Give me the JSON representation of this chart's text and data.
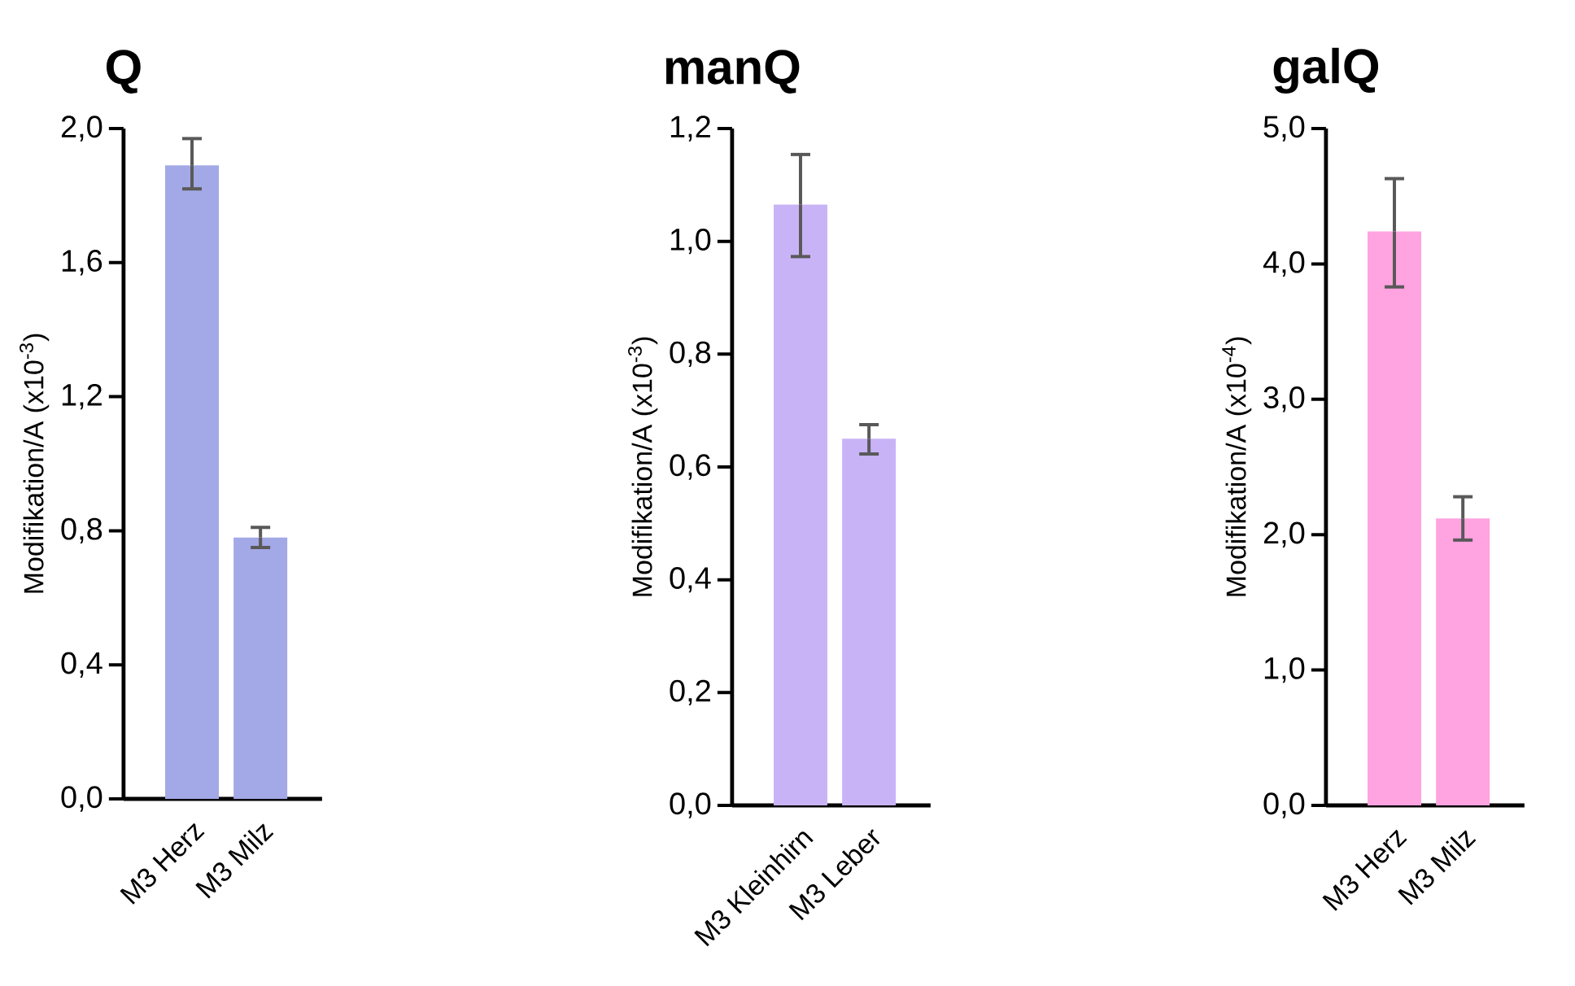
{
  "chart_data": [
    {
      "type": "bar",
      "title": "Q",
      "ylabel": "Modifikation/A (x10$^{-3}$)",
      "categories": [
        "M3 Herz",
        "M3 Milz"
      ],
      "values": [
        1.89,
        0.78
      ],
      "errors": [
        [
          1.82,
          1.97
        ],
        [
          0.75,
          0.81
        ]
      ],
      "color": "#a3a8e6",
      "ylim": [
        0,
        2.0
      ],
      "yticks": [
        {
          "value": 0,
          "label": "0,0"
        },
        {
          "value": 0.4,
          "label": "0,4"
        },
        {
          "value": 0.8,
          "label": "0,8"
        },
        {
          "value": 1.2,
          "label": "1,2"
        },
        {
          "value": 1.6,
          "label": "1,6"
        },
        {
          "value": 2.0,
          "label": "2,0"
        }
      ]
    },
    {
      "type": "bar",
      "title": "manQ",
      "ylabel": "Modifikation/A (x10$^{-3}$)",
      "categories": [
        "M3 Kleinhirn",
        "M3 Leber"
      ],
      "values": [
        1.065,
        0.65
      ],
      "errors": [
        [
          0.973,
          1.154
        ],
        [
          0.623,
          0.675
        ]
      ],
      "color": "#c9b3f7",
      "ylim": [
        0,
        1.2
      ],
      "yticks": [
        {
          "value": 0,
          "label": "0,0"
        },
        {
          "value": 0.2,
          "label": "0,2"
        },
        {
          "value": 0.4,
          "label": "0,4"
        },
        {
          "value": 0.6,
          "label": "0,6"
        },
        {
          "value": 0.8,
          "label": "0,8"
        },
        {
          "value": 1.0,
          "label": "1,0"
        },
        {
          "value": 1.2,
          "label": "1,2"
        }
      ]
    },
    {
      "type": "bar",
      "title": "galQ",
      "ylabel": "Modifikation/A (x10$^{-4}$)",
      "categories": [
        "M3 Herz",
        "M3 Milz"
      ],
      "values": [
        4.24,
        2.12
      ],
      "errors": [
        [
          3.83,
          4.63
        ],
        [
          1.96,
          2.28
        ]
      ],
      "color": "#ffa3e1",
      "ylim": [
        0,
        5.0
      ],
      "yticks": [
        {
          "value": 0,
          "label": "0,0"
        },
        {
          "value": 1.0,
          "label": "1,0"
        },
        {
          "value": 2.0,
          "label": "2,0"
        },
        {
          "value": 3.0,
          "label": "3,0"
        },
        {
          "value": 4.0,
          "label": "4,0"
        },
        {
          "value": 5.0,
          "label": "5,0"
        }
      ]
    }
  ]
}
